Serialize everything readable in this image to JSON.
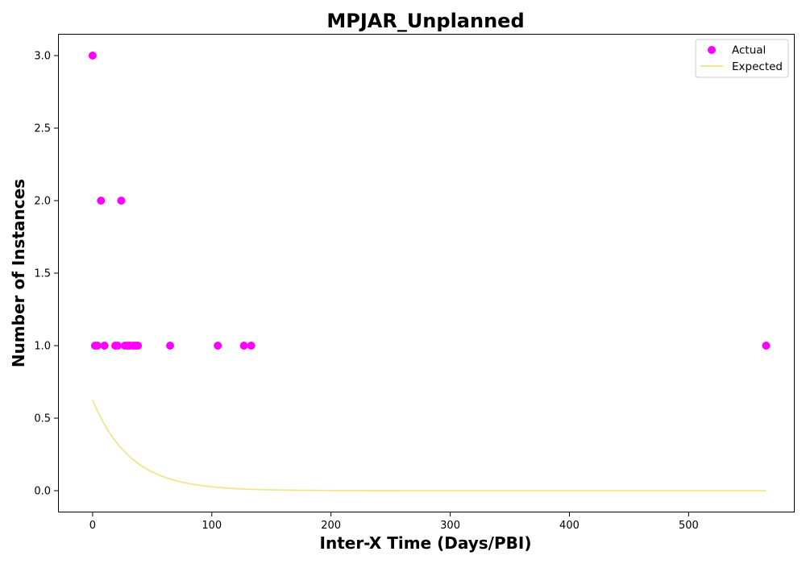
{
  "chart_data": {
    "type": "scatter",
    "title": "MPJAR_Unplanned",
    "xlabel": "Inter-X Time (Days/PBI)",
    "ylabel": "Number of Instances",
    "xlim": [
      -29,
      589
    ],
    "ylim": [
      -0.15,
      3.15
    ],
    "xticks": [
      0,
      100,
      200,
      300,
      400,
      500
    ],
    "xtick_labels": [
      "0",
      "100",
      "200",
      "300",
      "400",
      "500"
    ],
    "yticks": [
      0.0,
      0.5,
      1.0,
      1.5,
      2.0,
      2.5,
      3.0
    ],
    "ytick_labels": [
      "0.0",
      "0.5",
      "1.0",
      "1.5",
      "2.0",
      "2.5",
      "3.0"
    ],
    "grid": false,
    "legend_position": "top-right",
    "series": [
      {
        "name": "Actual",
        "kind": "scatter",
        "color": "#ff00ff",
        "x": [
          0,
          2,
          4,
          7,
          10,
          19,
          21,
          24,
          27,
          29,
          31,
          34,
          36,
          38,
          65,
          105,
          127,
          133,
          565
        ],
        "y": [
          3,
          1,
          1,
          2,
          1,
          1,
          1,
          2,
          1,
          1,
          1,
          1,
          1,
          1,
          1,
          1,
          1,
          1,
          1
        ]
      },
      {
        "name": "Expected",
        "kind": "line",
        "color": "#f0e68c",
        "model": "exponential",
        "amplitude": 0.625,
        "rate": 0.0315,
        "x_range": [
          0,
          565
        ]
      }
    ]
  }
}
